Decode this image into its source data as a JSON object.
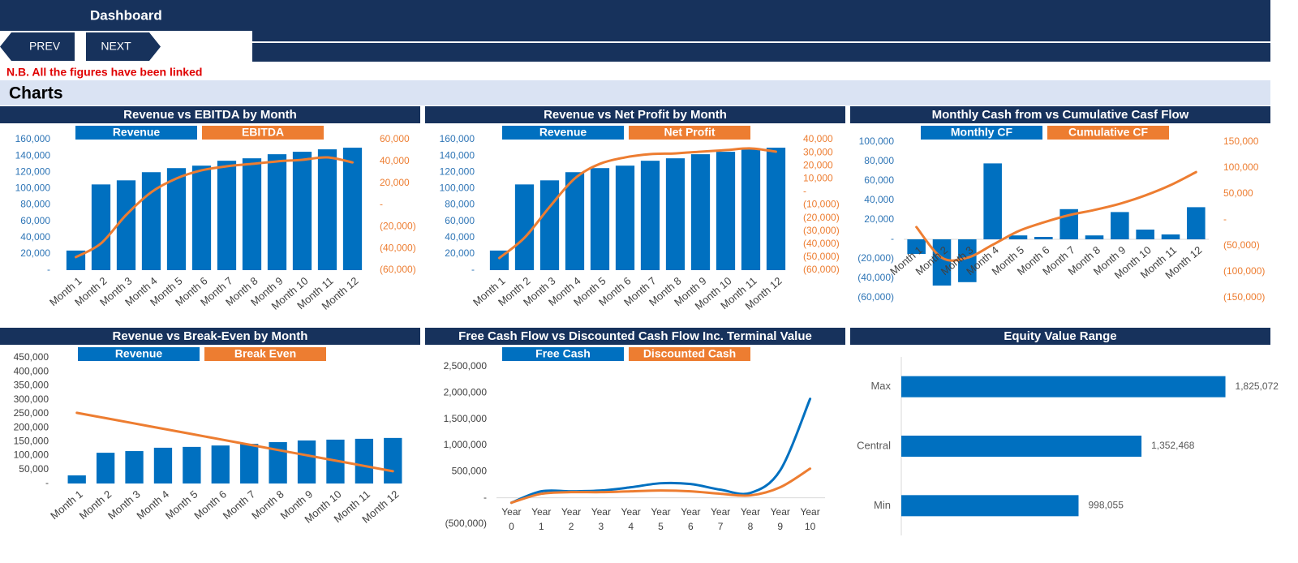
{
  "header": {
    "title": "Dashboard"
  },
  "nav": {
    "prev": "PREV",
    "next": "NEXT"
  },
  "note": "N.B. All the figures have been linked",
  "section": "Charts",
  "chart_data": [
    {
      "type": "combo",
      "title": "Revenue vs EBITDA by Month",
      "categories": [
        "Month 1",
        "Month 2",
        "Month 3",
        "Month 4",
        "Month 5",
        "Month 6",
        "Month 7",
        "Month 8",
        "Month 9",
        "Month 10",
        "Month 11",
        "Month 12"
      ],
      "series": [
        {
          "name": "Revenue",
          "type": "bar",
          "color": "#0070c0",
          "values": [
            24000,
            105000,
            110000,
            120000,
            125000,
            128000,
            134000,
            137000,
            142000,
            145000,
            148000,
            150000
          ]
        },
        {
          "name": "EBITDA",
          "type": "line",
          "axis": "y2",
          "color": "#ed7d31",
          "values": [
            -48000,
            -35400,
            -9300,
            11600,
            24200,
            31700,
            35400,
            37600,
            39900,
            41400,
            43600,
            39000
          ]
        }
      ],
      "ylim": [
        0,
        160000
      ],
      "yticks": [
        {
          "value": 0,
          "label": "-"
        },
        {
          "value": 20000,
          "label": "20,000"
        },
        {
          "value": 40000,
          "label": "40,000"
        },
        {
          "value": 60000,
          "label": "60,000"
        },
        {
          "value": 80000,
          "label": "80,000"
        },
        {
          "value": 100000,
          "label": "100,000"
        },
        {
          "value": 120000,
          "label": "120,000"
        },
        {
          "value": 140000,
          "label": "140,000"
        },
        {
          "value": 160000,
          "label": "160,000"
        }
      ],
      "y2lim": [
        -60000,
        60000
      ],
      "y2ticks": [
        {
          "value": -60000,
          "label": "(60,000)"
        },
        {
          "value": -40000,
          "label": "(40,000)"
        },
        {
          "value": -20000,
          "label": "(20,000)"
        },
        {
          "value": 0,
          "label": "-"
        },
        {
          "value": 20000,
          "label": "20,000"
        },
        {
          "value": 40000,
          "label": "40,000"
        },
        {
          "value": 60000,
          "label": "60,000"
        }
      ]
    },
    {
      "type": "combo",
      "title": "Revenue vs Net Profit by Month",
      "categories": [
        "Month 1",
        "Month 2",
        "Month 3",
        "Month 4",
        "Month 5",
        "Month 6",
        "Month 7",
        "Month 8",
        "Month 9",
        "Month 10",
        "Month 11",
        "Month 12"
      ],
      "series": [
        {
          "name": "Revenue",
          "type": "bar",
          "color": "#0070c0",
          "values": [
            24000,
            105000,
            110000,
            120000,
            125000,
            128000,
            134000,
            137000,
            142000,
            145000,
            148000,
            150000
          ]
        },
        {
          "name": "Net Profit",
          "type": "line",
          "axis": "y2",
          "color": "#ed7d31",
          "values": [
            -50700,
            -35200,
            -11600,
            10200,
            21400,
            26300,
            28800,
            29400,
            30700,
            31900,
            33200,
            30700
          ]
        }
      ],
      "ylim": [
        0,
        160000
      ],
      "yticks": [
        {
          "value": 0,
          "label": "-"
        },
        {
          "value": 20000,
          "label": "20,000"
        },
        {
          "value": 40000,
          "label": "40,000"
        },
        {
          "value": 60000,
          "label": "60,000"
        },
        {
          "value": 80000,
          "label": "80,000"
        },
        {
          "value": 100000,
          "label": "100,000"
        },
        {
          "value": 120000,
          "label": "120,000"
        },
        {
          "value": 140000,
          "label": "140,000"
        },
        {
          "value": 160000,
          "label": "160,000"
        }
      ],
      "y2lim": [
        -60000,
        40000
      ],
      "y2ticks": [
        {
          "value": -60000,
          "label": "(60,000)"
        },
        {
          "value": -50000,
          "label": "(50,000)"
        },
        {
          "value": -40000,
          "label": "(40,000)"
        },
        {
          "value": -30000,
          "label": "(30,000)"
        },
        {
          "value": -20000,
          "label": "(20,000)"
        },
        {
          "value": -10000,
          "label": "(10,000)"
        },
        {
          "value": 0,
          "label": "-"
        },
        {
          "value": 10000,
          "label": "10,000"
        },
        {
          "value": 20000,
          "label": "20,000"
        },
        {
          "value": 30000,
          "label": "30,000"
        },
        {
          "value": 40000,
          "label": "40,000"
        }
      ]
    },
    {
      "type": "combo",
      "title": "Monthly Cash from vs Cumulative Casf Flow",
      "categories": [
        "Month 1",
        "Month 2",
        "Month 3",
        "Month 4",
        "Month 5",
        "Month 6",
        "Month 7",
        "Month 8",
        "Month 9",
        "Month 10",
        "Month 11",
        "Month 12"
      ],
      "series": [
        {
          "name": "Monthly CF",
          "type": "bar",
          "color": "#0070c0",
          "values": [
            -15000,
            -47500,
            -44000,
            78000,
            4000,
            2500,
            31000,
            4000,
            28000,
            10000,
            5000,
            33000
          ]
        },
        {
          "name": "Cumulative CF",
          "type": "line",
          "axis": "y2",
          "color": "#ed7d31",
          "values": [
            -14000,
            -73000,
            -73000,
            -48000,
            -22000,
            -5000,
            9000,
            19000,
            31000,
            47000,
            67000,
            92000
          ]
        }
      ],
      "ylim": [
        -60000,
        100000
      ],
      "yticks": [
        {
          "value": -60000,
          "label": "(60,000)"
        },
        {
          "value": -40000,
          "label": "(40,000)"
        },
        {
          "value": -20000,
          "label": "(20,000)"
        },
        {
          "value": 0,
          "label": "-"
        },
        {
          "value": 20000,
          "label": "20,000"
        },
        {
          "value": 40000,
          "label": "40,000"
        },
        {
          "value": 60000,
          "label": "60,000"
        },
        {
          "value": 80000,
          "label": "80,000"
        },
        {
          "value": 100000,
          "label": "100,000"
        }
      ],
      "y2lim": [
        -150000,
        150000
      ],
      "y2ticks": [
        {
          "value": -150000,
          "label": "(150,000)"
        },
        {
          "value": -100000,
          "label": "(100,000)"
        },
        {
          "value": -50000,
          "label": "(50,000)"
        },
        {
          "value": 0,
          "label": "-"
        },
        {
          "value": 50000,
          "label": "50,000"
        },
        {
          "value": 100000,
          "label": "100,000"
        },
        {
          "value": 150000,
          "label": "150,000"
        }
      ]
    },
    {
      "type": "combo",
      "title": "Revenue vs Break-Even by Month",
      "categories": [
        "Month 1",
        "Month 2",
        "Month 3",
        "Month 4",
        "Month 5",
        "Month 6",
        "Month 7",
        "Month 8",
        "Month 9",
        "Month 10",
        "Month 11",
        "Month 12"
      ],
      "series": [
        {
          "name": "Revenue",
          "type": "bar",
          "color": "#0070c0",
          "values": [
            29000,
            110000,
            116000,
            128000,
            131000,
            136000,
            142000,
            148000,
            154000,
            157000,
            160000,
            163000
          ]
        },
        {
          "name": "Break Even",
          "type": "line",
          "color": "#ed7d31",
          "values": [
            253000,
            234000,
            215000,
            196000,
            177000,
            158000,
            139000,
            120000,
            101000,
            82000,
            63000,
            44000
          ]
        }
      ],
      "ylim": [
        0,
        450000
      ],
      "yticks": [
        {
          "value": 0,
          "label": "-"
        },
        {
          "value": 50000,
          "label": "50,000"
        },
        {
          "value": 100000,
          "label": "100,000"
        },
        {
          "value": 150000,
          "label": "150,000"
        },
        {
          "value": 200000,
          "label": "200,000"
        },
        {
          "value": 250000,
          "label": "250,000"
        },
        {
          "value": 300000,
          "label": "300,000"
        },
        {
          "value": 350000,
          "label": "350,000"
        },
        {
          "value": 400000,
          "label": "400,000"
        },
        {
          "value": 450000,
          "label": "450,000"
        }
      ]
    },
    {
      "type": "combo",
      "title": "Free Cash Flow vs Discounted Cash Flow Inc. Terminal Value",
      "categories": [
        "Year 0",
        "Year 1",
        "Year 2",
        "Year 3",
        "Year 4",
        "Year 5",
        "Year 6",
        "Year 7",
        "Year 8",
        "Year 9",
        "Year 10"
      ],
      "series": [
        {
          "name": "Free Cash",
          "type": "line",
          "color": "#0070c0",
          "values": [
            -93000,
            124000,
            124000,
            139000,
            201000,
            278000,
            263000,
            155000,
            93000,
            526000,
            1887000
          ]
        },
        {
          "name": "Discounted Cash",
          "type": "line",
          "color": "#ed7d31",
          "values": [
            -93000,
            77000,
            108000,
            108000,
            124000,
            139000,
            124000,
            77000,
            46000,
            201000,
            557000
          ]
        }
      ],
      "ylim": [
        -500000,
        2500000
      ],
      "yticks": [
        {
          "value": -500000,
          "label": "(500,000)"
        },
        {
          "value": 0,
          "label": "-"
        },
        {
          "value": 500000,
          "label": "500,000"
        },
        {
          "value": 1000000,
          "label": "1,000,000"
        },
        {
          "value": 1500000,
          "label": "1,500,000"
        },
        {
          "value": 2000000,
          "label": "2,000,000"
        },
        {
          "value": 2500000,
          "label": "2,500,000"
        }
      ]
    },
    {
      "type": "hbar",
      "title": "Equity Value Range",
      "categories": [
        "Max",
        "Central",
        "Min"
      ],
      "values": [
        1825072,
        1352468,
        998055
      ],
      "value_labels": [
        "1,825,072",
        "1,352,468",
        "998,055"
      ],
      "color": "#0070c0",
      "xlim": [
        0,
        1850000
      ]
    }
  ]
}
